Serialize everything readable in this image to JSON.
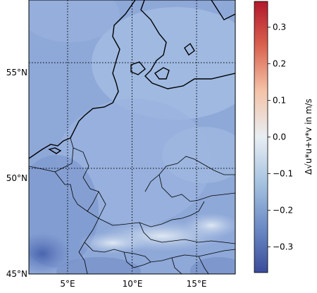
{
  "map": {
    "projection": "PlateCarree",
    "lon_range": [
      2,
      18
    ],
    "lat_range": [
      45,
      58
    ],
    "field_colormap": "RdBu_r",
    "gridlines": {
      "style": "dotted",
      "color": "#000000"
    },
    "lon_ticks": [
      {
        "value": 5,
        "label": "5°E"
      },
      {
        "value": 10,
        "label": "10°E"
      },
      {
        "value": 15,
        "label": "15°E"
      }
    ],
    "lat_ticks": [
      {
        "value": 45,
        "label": "45°N"
      },
      {
        "value": 50,
        "label": "50°N"
      },
      {
        "value": 55,
        "label": "55°N"
      }
    ],
    "features": [
      "coastline",
      "country-borders"
    ]
  },
  "colorbar": {
    "label": "Δ√u*u+v*v in m/s",
    "range": [
      -0.37,
      0.37
    ],
    "ticks": [
      {
        "value": 0.3,
        "label": "0.3"
      },
      {
        "value": 0.2,
        "label": "0.2"
      },
      {
        "value": 0.1,
        "label": "0.1"
      },
      {
        "value": 0.0,
        "label": "0.0"
      },
      {
        "value": -0.1,
        "label": "−0.1"
      },
      {
        "value": -0.2,
        "label": "−0.2"
      },
      {
        "value": -0.3,
        "label": "−0.3"
      }
    ],
    "colors": [
      "#3b4c9a",
      "#6a89c4",
      "#a6c2e0",
      "#e8eef3",
      "#f4c3a8",
      "#d9614e",
      "#b2182b"
    ]
  }
}
